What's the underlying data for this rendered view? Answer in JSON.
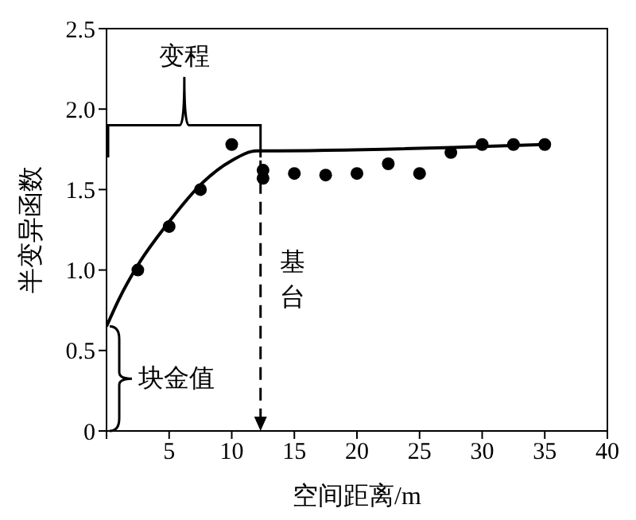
{
  "chart_data": {
    "type": "scatter",
    "xlabel": "空间距离/m",
    "ylabel": "半变异函数",
    "xlim": [
      0,
      40
    ],
    "xticks": [
      {
        "value": 0,
        "label": null
      },
      5,
      10,
      15,
      20,
      25,
      30,
      35,
      40
    ],
    "ylim": [
      0,
      2.5
    ],
    "yticks": [
      0,
      0.5,
      {
        "value": 1,
        "label": "1.0"
      },
      1.5,
      {
        "value": 2,
        "label": "2.0"
      },
      2.5
    ],
    "marker": "circle",
    "series": [
      {
        "color": "#000000",
        "x": [
          2.5,
          5,
          7.5,
          10,
          12.5,
          12.5,
          15,
          17.5,
          20,
          22.5,
          25,
          27.5,
          30,
          32.5,
          35
        ],
        "values": [
          1.0,
          1.27,
          1.5,
          1.78,
          1.62,
          1.57,
          1.6,
          1.59,
          1.6,
          1.66,
          1.6,
          1.73,
          1.78,
          1.78,
          1.78
        ]
      },
      {
        "type": "line",
        "color": "#000000",
        "marker": "none",
        "x": [
          0,
          1,
          2.5,
          5,
          7.5,
          10,
          12,
          12.5,
          35
        ],
        "values": [
          0.65,
          0.82,
          1.03,
          1.3,
          1.53,
          1.68,
          1.74,
          1.74,
          1.78
        ]
      }
    ],
    "annotations": [
      "变程",
      "基台",
      "块金值"
    ]
  }
}
